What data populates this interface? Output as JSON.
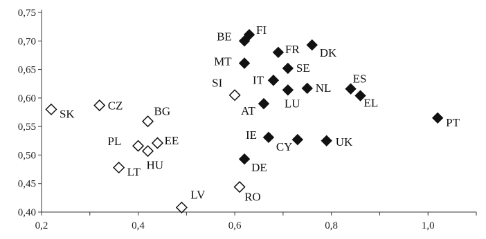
{
  "chart_data": {
    "type": "scatter",
    "title": "",
    "xlabel": "",
    "ylabel": "",
    "xlim": [
      0.2,
      1.1
    ],
    "ylim": [
      0.4,
      0.75
    ],
    "grid": false,
    "x_ticks": [
      "0,2",
      "0,4",
      "0,6",
      "0,8",
      "1,0"
    ],
    "y_ticks": [
      "0,40",
      "0,45",
      "0,50",
      "0,55",
      "0,60",
      "0,65",
      "0,70",
      "0,75"
    ],
    "series": [
      {
        "marker": "diamond-filled",
        "color": "#111111",
        "points": [
          {
            "label": "BE",
            "x": 0.62,
            "y": 0.7
          },
          {
            "label": "FI",
            "x": 0.63,
            "y": 0.711
          },
          {
            "label": "DK",
            "x": 0.76,
            "y": 0.693
          },
          {
            "label": "FR",
            "x": 0.69,
            "y": 0.68
          },
          {
            "label": "MT",
            "x": 0.62,
            "y": 0.661
          },
          {
            "label": "SE",
            "x": 0.71,
            "y": 0.652
          },
          {
            "label": "IT",
            "x": 0.68,
            "y": 0.631
          },
          {
            "label": "LU",
            "x": 0.71,
            "y": 0.614
          },
          {
            "label": "NL",
            "x": 0.75,
            "y": 0.617
          },
          {
            "label": "ES",
            "x": 0.84,
            "y": 0.616
          },
          {
            "label": "EL",
            "x": 0.86,
            "y": 0.604
          },
          {
            "label": "AT",
            "x": 0.66,
            "y": 0.59
          },
          {
            "label": "PT",
            "x": 1.02,
            "y": 0.565
          },
          {
            "label": "IE",
            "x": 0.67,
            "y": 0.531
          },
          {
            "label": "CY",
            "x": 0.73,
            "y": 0.527
          },
          {
            "label": "UK",
            "x": 0.79,
            "y": 0.525
          },
          {
            "label": "DE",
            "x": 0.62,
            "y": 0.493
          }
        ]
      },
      {
        "marker": "diamond-open",
        "color": "#111111",
        "points": [
          {
            "label": "SK",
            "x": 0.22,
            "y": 0.58
          },
          {
            "label": "CZ",
            "x": 0.32,
            "y": 0.587
          },
          {
            "label": "BG",
            "x": 0.42,
            "y": 0.559
          },
          {
            "label": "SI",
            "x": 0.6,
            "y": 0.605
          },
          {
            "label": "PL",
            "x": 0.4,
            "y": 0.516
          },
          {
            "label": "EE",
            "x": 0.44,
            "y": 0.521
          },
          {
            "label": "HU",
            "x": 0.42,
            "y": 0.507
          },
          {
            "label": "LT",
            "x": 0.36,
            "y": 0.478
          },
          {
            "label": "RO",
            "x": 0.61,
            "y": 0.444
          },
          {
            "label": "LV",
            "x": 0.49,
            "y": 0.408
          }
        ]
      }
    ]
  }
}
